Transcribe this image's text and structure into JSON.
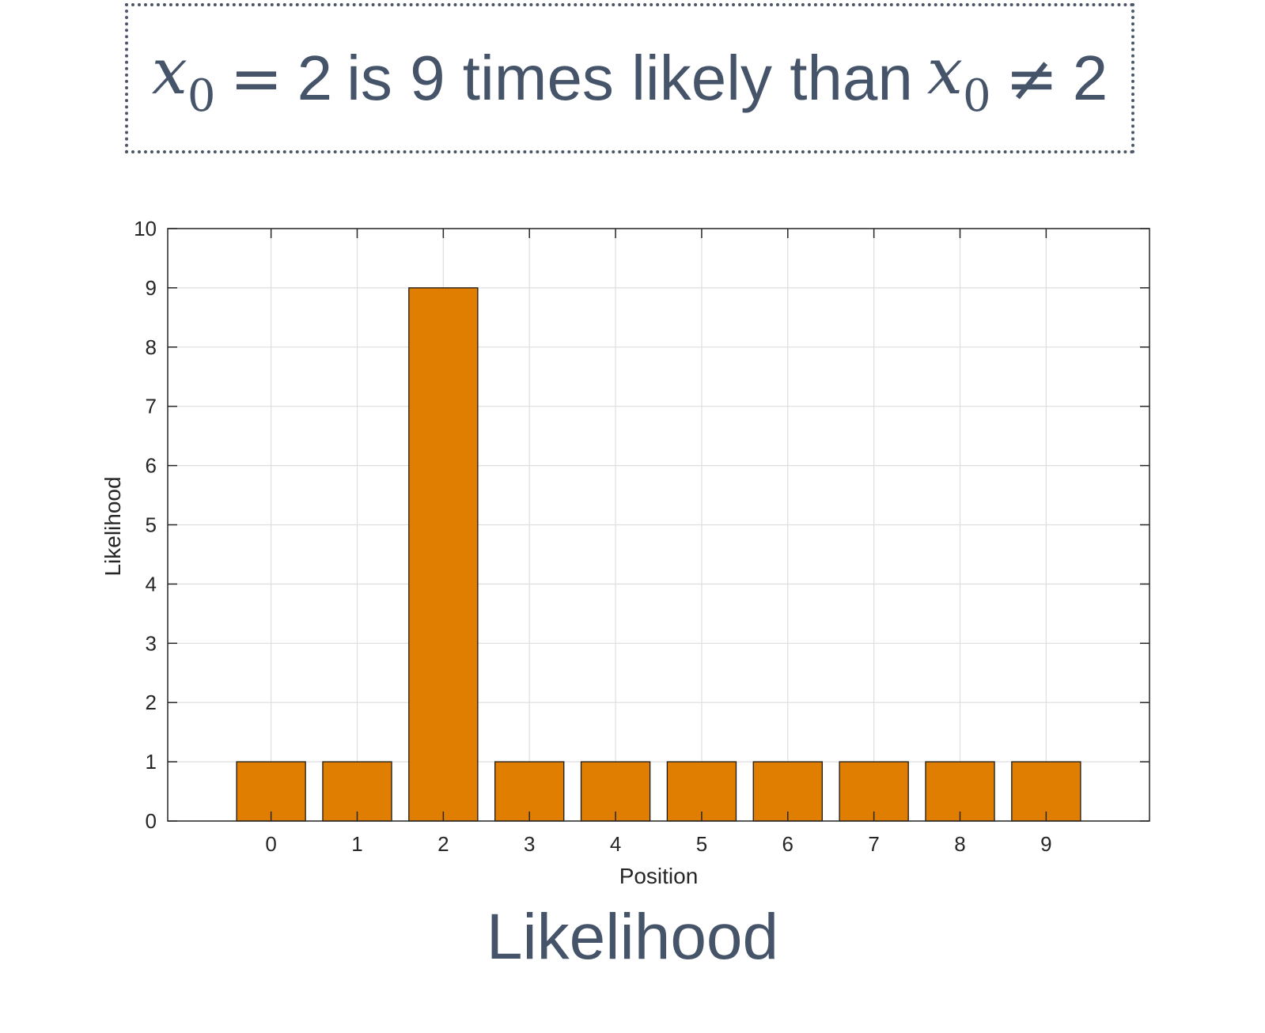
{
  "callout": {
    "var1": "x",
    "sub1": "0",
    "eq": "=",
    "val1": "2",
    "text": "is 9 times likely than",
    "var2": "x",
    "sub2": "0",
    "neq": "≠",
    "val2": "2"
  },
  "caption": "Likelihood",
  "colors": {
    "bar": "#df7e00",
    "text": "#46546a",
    "border": "#4a5568"
  },
  "chart_data": {
    "type": "bar",
    "categories": [
      "0",
      "1",
      "2",
      "3",
      "4",
      "5",
      "6",
      "7",
      "8",
      "9"
    ],
    "values": [
      1,
      1,
      9,
      1,
      1,
      1,
      1,
      1,
      1,
      1
    ],
    "title": "",
    "xlabel": "Position",
    "ylabel": "Likelihood",
    "xlim": [
      -1.2,
      10.2
    ],
    "ylim": [
      0,
      10
    ],
    "yticks": [
      0,
      1,
      2,
      3,
      4,
      5,
      6,
      7,
      8,
      9,
      10
    ],
    "grid": true,
    "legend": "none"
  }
}
